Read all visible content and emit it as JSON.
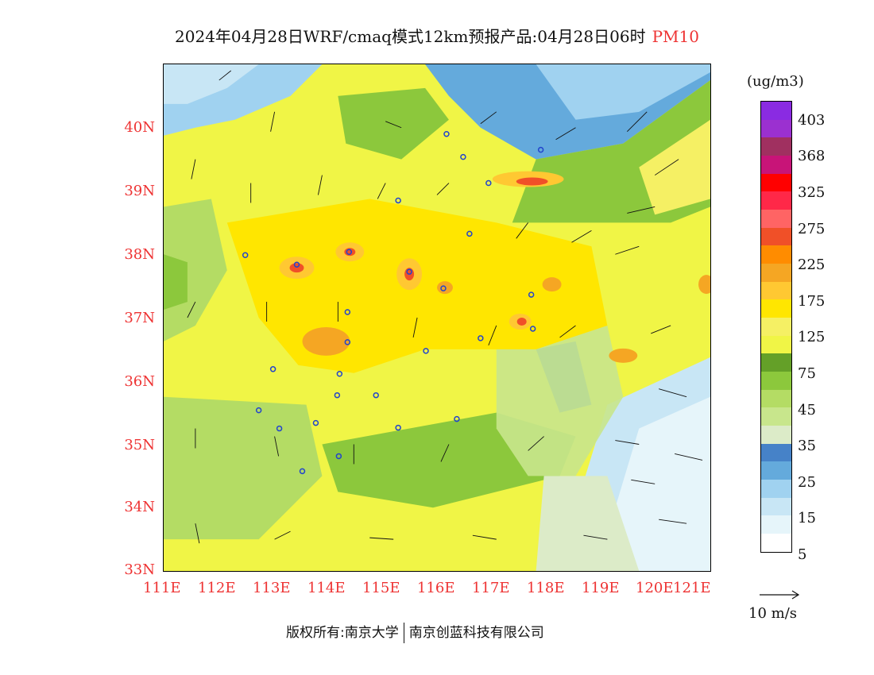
{
  "title": {
    "text": "2024年04月28日WRF/cmaq模式12km预报产品:04月28日06时",
    "pollutant": "PM10",
    "pollutant_color": "#ee3333"
  },
  "map": {
    "lat_labels": [
      "40N",
      "39N",
      "38N",
      "37N",
      "36N",
      "35N",
      "34N",
      "33N"
    ],
    "lon_labels": [
      "111E",
      "112E",
      "113E",
      "114E",
      "115E",
      "116E",
      "117E",
      "118E",
      "119E",
      "120E",
      "121E"
    ],
    "axis_color": "#ee3333"
  },
  "legend": {
    "units": "(ug/m3)",
    "labels": [
      "403",
      "368",
      "325",
      "275",
      "225",
      "175",
      "125",
      "75",
      "45",
      "35",
      "25",
      "15",
      "5"
    ],
    "colors": [
      "#8a2be2",
      "#9b30d0",
      "#a03060",
      "#c81478",
      "#ff0000",
      "#ff2848",
      "#ff6464",
      "#f05028",
      "#ff8c00",
      "#f5a623",
      "#ffc832",
      "#ffe600",
      "#f5f064",
      "#f0f546",
      "#64a028",
      "#8cc83c",
      "#b4dc64",
      "#c8e68c",
      "#dcebc8",
      "#4682c8",
      "#64aadc",
      "#a0d2f0",
      "#c8e6f5",
      "#e6f5fa",
      "#ffffff"
    ],
    "ref_vector": "10 m/s"
  },
  "copyright": {
    "prefix": "版权所有:",
    "org1": "南京大学",
    "org2": "南京创蓝科技有限公司"
  }
}
